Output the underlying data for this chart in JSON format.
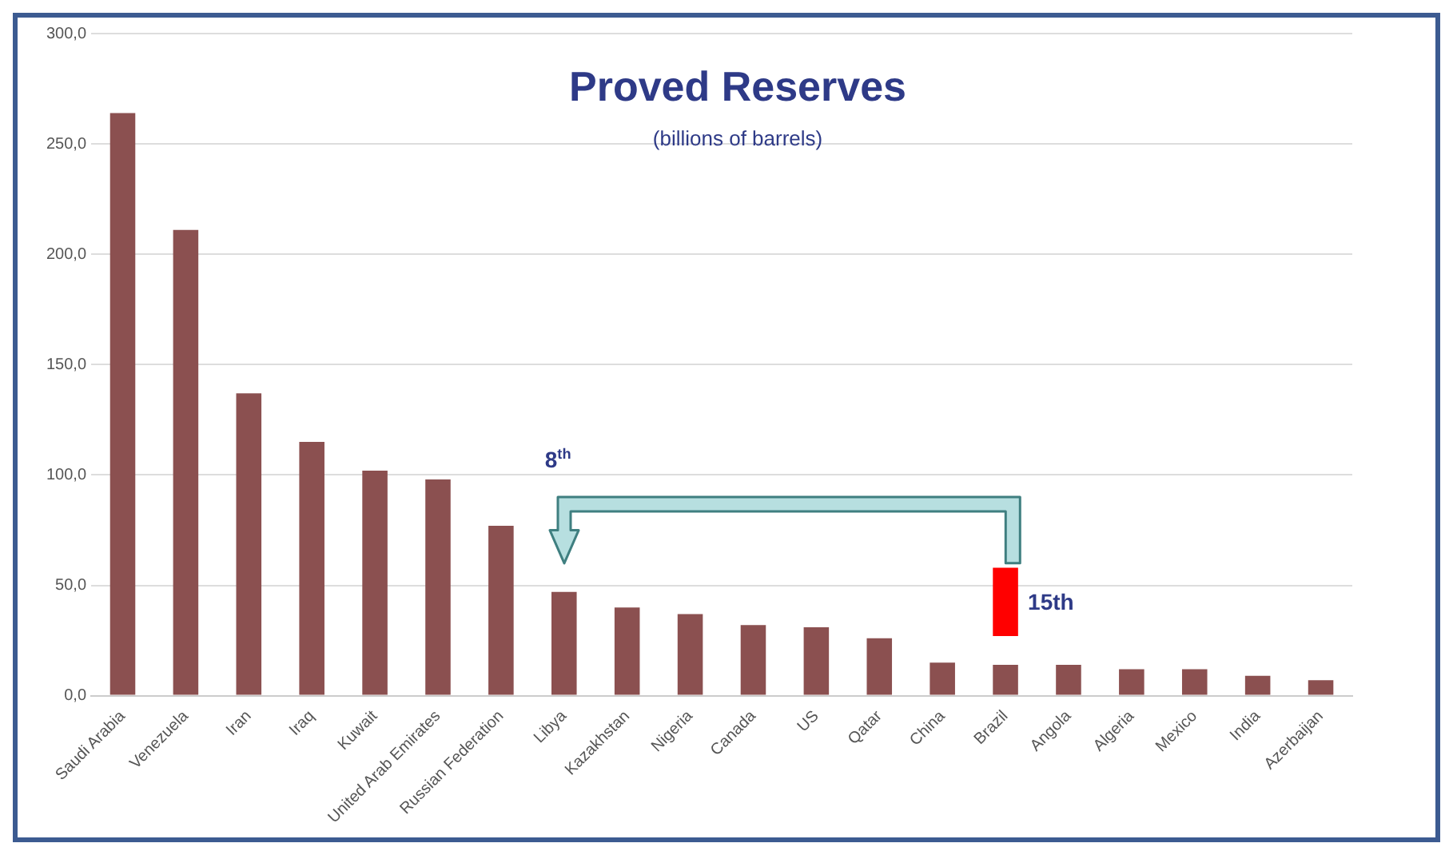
{
  "chart_data": {
    "type": "bar",
    "title": "Proved Reserves",
    "subtitle": "(billions of barrels)",
    "categories": [
      "Saudi Arabia",
      "Venezuela",
      "Iran",
      "Iraq",
      "Kuwait",
      "United Arab Emirates",
      "Russian Federation",
      "Libya",
      "Kazakhstan",
      "Nigeria",
      "Canada",
      "US",
      "Qatar",
      "China",
      "Brazil",
      "Angola",
      "Algeria",
      "Mexico",
      "India",
      "Azerbaijan"
    ],
    "series": [
      {
        "color": "#8b5050",
        "values": [
          264,
          211,
          137,
          115,
          102,
          98,
          77,
          47,
          40,
          37,
          32,
          31,
          26,
          15,
          14,
          14,
          12,
          12,
          9,
          7
        ]
      },
      {
        "color": "#ff0000",
        "values": [
          null,
          null,
          null,
          null,
          null,
          null,
          null,
          null,
          null,
          null,
          null,
          null,
          null,
          null,
          31,
          null,
          null,
          null,
          null,
          null
        ],
        "base": [
          null,
          null,
          null,
          null,
          null,
          null,
          null,
          null,
          null,
          null,
          null,
          null,
          null,
          null,
          27,
          null,
          null,
          null,
          null,
          null
        ]
      }
    ],
    "ylim": [
      0,
      300
    ],
    "yticks": [
      {
        "value": 0,
        "label": "0,0"
      },
      {
        "value": 50,
        "label": "50,0"
      },
      {
        "value": 100,
        "label": "100,0"
      },
      {
        "value": 150,
        "label": "150,0"
      },
      {
        "value": 200,
        "label": "200,0"
      },
      {
        "value": 250,
        "label": "250,0"
      },
      {
        "value": 300,
        "label": "300,0"
      }
    ],
    "grid": "y",
    "legend": false,
    "annotations": [
      "8$^{th}$",
      "15th"
    ]
  }
}
